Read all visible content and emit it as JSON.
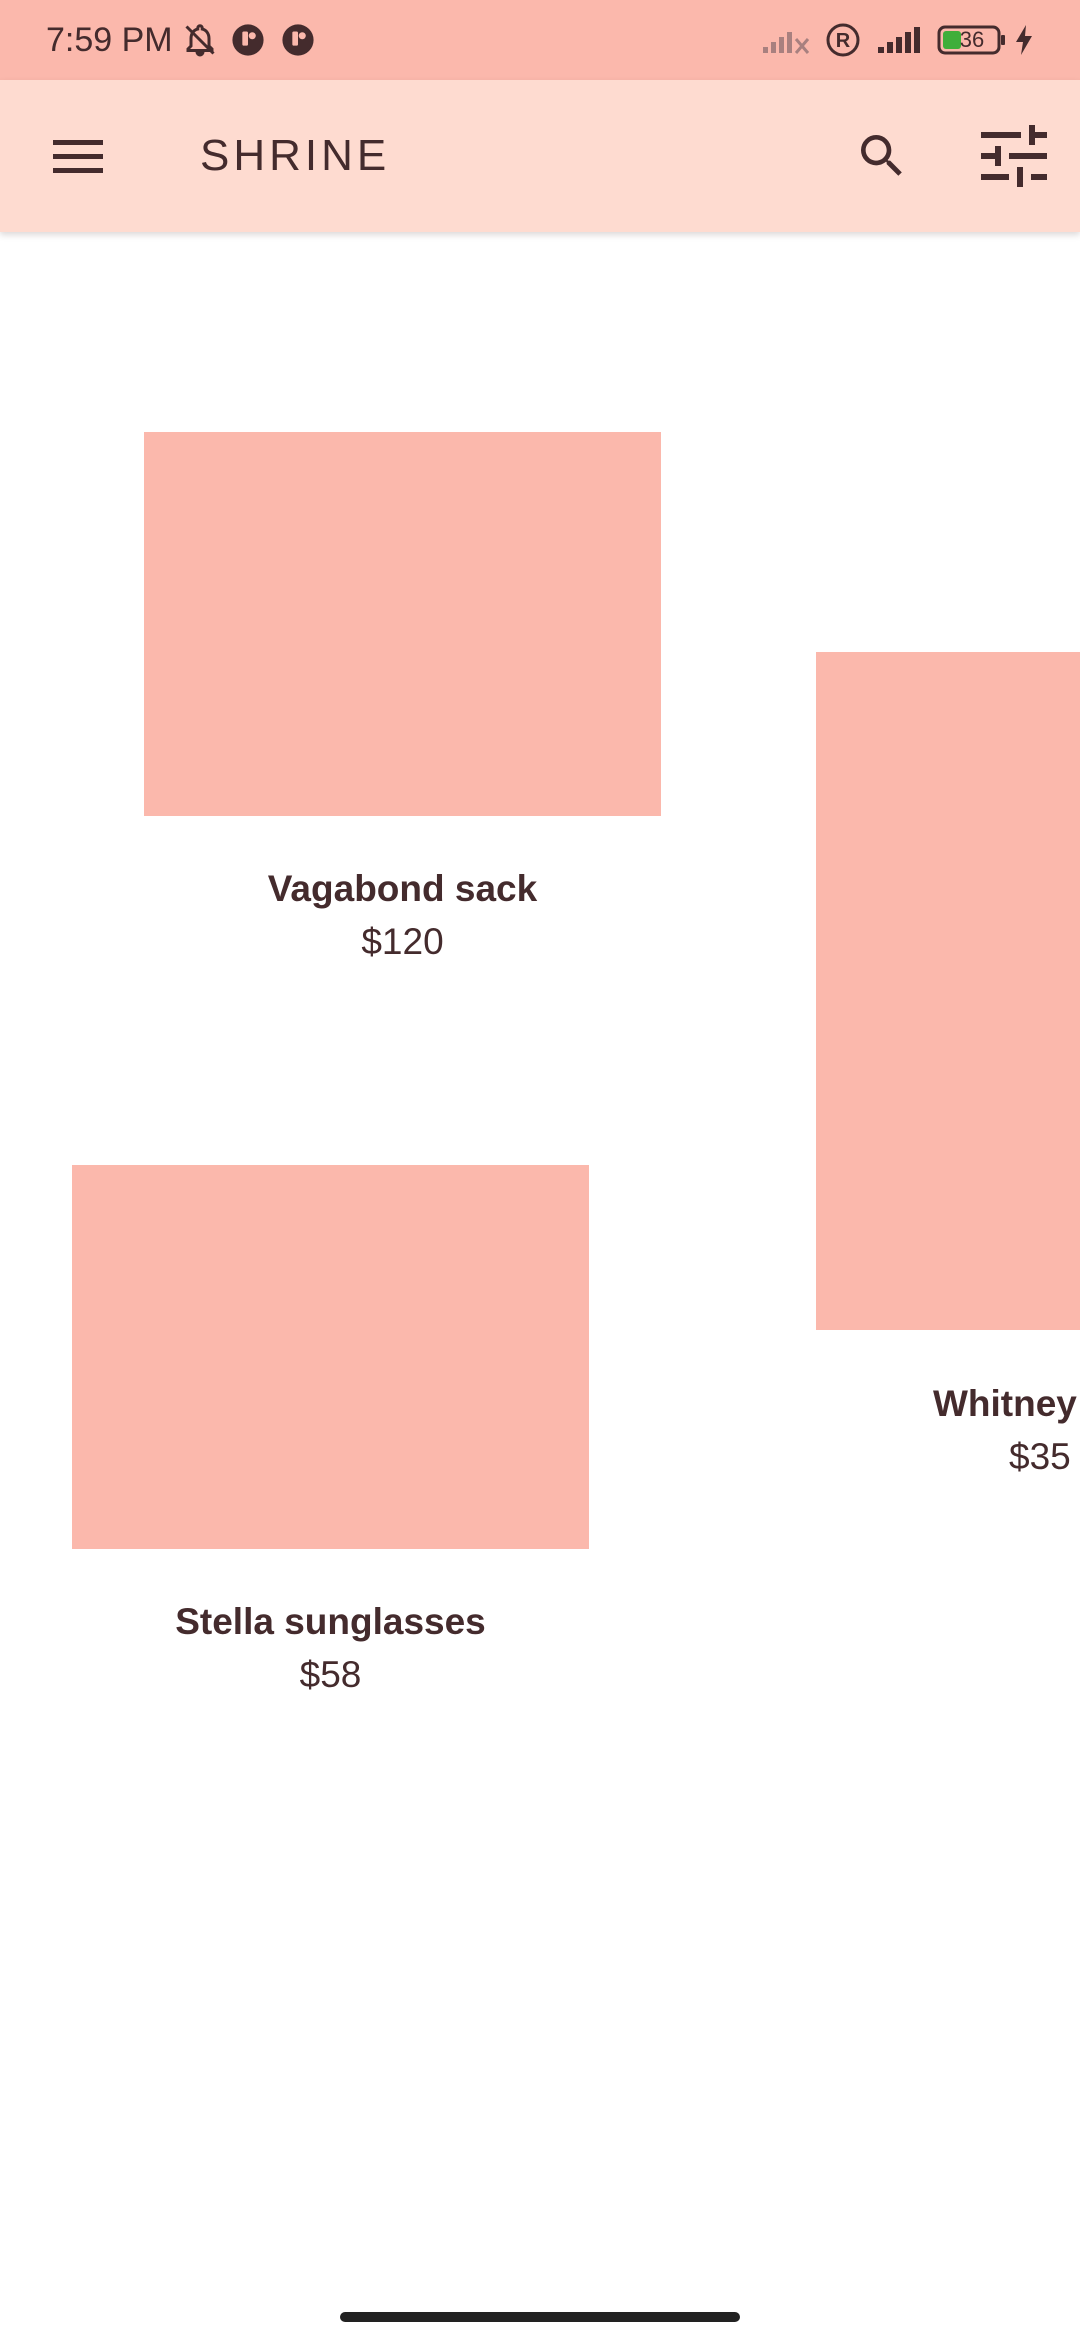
{
  "status_bar": {
    "time": "7:59 PM",
    "battery_level": "36",
    "icons": [
      "bell-off-icon",
      "notification-app-icon",
      "notification-app-icon",
      "signal-no-service-icon",
      "roaming-icon",
      "signal-icon",
      "battery-icon",
      "charging-icon"
    ]
  },
  "app_bar": {
    "title": "SHRINE",
    "menu_icon": "menu-icon",
    "search_icon": "search-icon",
    "filter_icon": "tune-icon"
  },
  "products": [
    {
      "name": "Vagabond sack",
      "price": "$120"
    },
    {
      "name": "Whitney",
      "price": "$35"
    },
    {
      "name": "Stella sunglasses",
      "price": "$58"
    }
  ],
  "colors": {
    "primary": "#fedbd0",
    "status_bar": "#fbb8ac",
    "image_placeholder": "#fbb8ac",
    "on_primary": "#442b2d"
  }
}
